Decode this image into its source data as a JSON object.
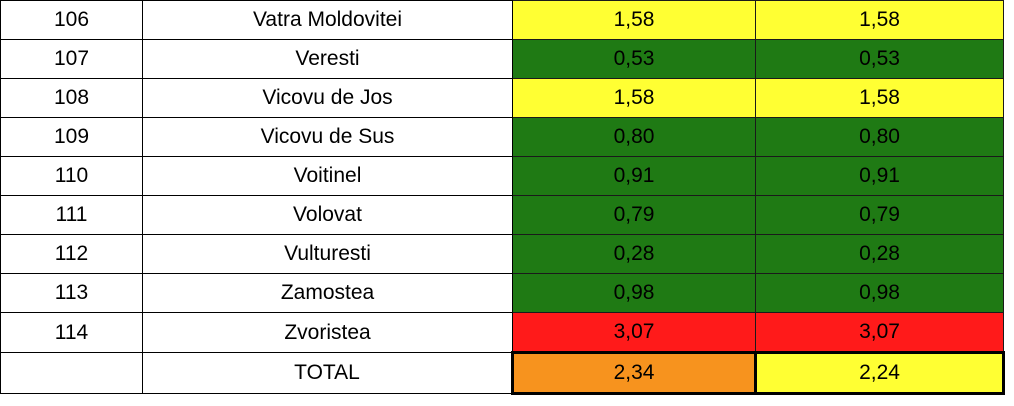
{
  "colors": {
    "yellow": "#ffff33",
    "green": "#1f7a14",
    "red": "#ff1a1a",
    "orange": "#f7931e"
  },
  "rows": [
    {
      "num": "106",
      "name": "Vatra Moldovitei",
      "v1": "1,58",
      "v2": "1,58",
      "c1": "yellow",
      "c2": "yellow"
    },
    {
      "num": "107",
      "name": "Veresti",
      "v1": "0,53",
      "v2": "0,53",
      "c1": "green",
      "c2": "green"
    },
    {
      "num": "108",
      "name": "Vicovu de Jos",
      "v1": "1,58",
      "v2": "1,58",
      "c1": "yellow",
      "c2": "yellow"
    },
    {
      "num": "109",
      "name": "Vicovu de Sus",
      "v1": "0,80",
      "v2": "0,80",
      "c1": "green",
      "c2": "green"
    },
    {
      "num": "110",
      "name": "Voitinel",
      "v1": "0,91",
      "v2": "0,91",
      "c1": "green",
      "c2": "green"
    },
    {
      "num": "111",
      "name": "Volovat",
      "v1": "0,79",
      "v2": "0,79",
      "c1": "green",
      "c2": "green"
    },
    {
      "num": "112",
      "name": "Vulturesti",
      "v1": "0,28",
      "v2": "0,28",
      "c1": "green",
      "c2": "green"
    },
    {
      "num": "113",
      "name": "Zamostea",
      "v1": "0,98",
      "v2": "0,98",
      "c1": "green",
      "c2": "green"
    },
    {
      "num": "114",
      "name": "Zvoristea",
      "v1": "3,07",
      "v2": "3,07",
      "c1": "red",
      "c2": "red"
    }
  ],
  "total": {
    "num": "",
    "name": "TOTAL",
    "v1": "2,34",
    "v2": "2,24",
    "c1": "orange",
    "c2": "yellow"
  }
}
